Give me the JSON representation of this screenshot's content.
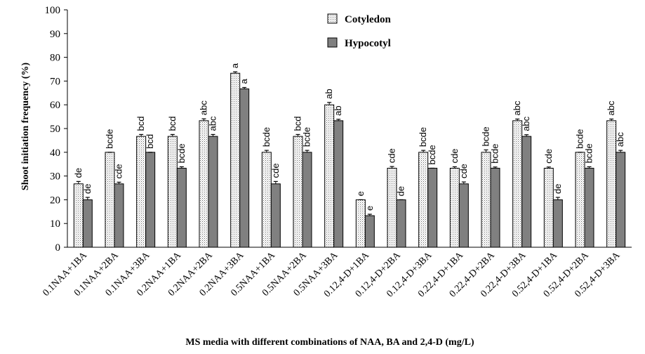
{
  "chart_data": {
    "type": "bar",
    "title": "",
    "xlabel": "MS media with different combinations of NAA, BA and 2,4-D (mg/L)",
    "ylabel": "Shoot initiation frequency (%)",
    "ylim": [
      0,
      100
    ],
    "yticks": [
      0,
      10,
      20,
      30,
      40,
      50,
      60,
      70,
      80,
      90,
      100
    ],
    "grid": false,
    "legend_position": "top-center",
    "categories": [
      "0.1NAA+1BA",
      "0.1NAA+2BA",
      "0.1NAA+3BA",
      "0.2NAA+1BA",
      "0.2NAA+2BA",
      "0.2NAA+3BA",
      "0.5NAA+1BA",
      "0.5NAA+2BA",
      "0.5NAA+3BA",
      "0.12,4-D+1BA",
      "0.12,4-D+2BA",
      "0.12,4-D+3BA",
      "0.22,4-D+1BA",
      "0.22,4-D+2BA",
      "0.22,4-D+3BA",
      "0.52,4-D+1BA",
      "0.52,4-D+2BA",
      "0.52,4-D+3BA"
    ],
    "series": [
      {
        "name": "Cotyledon",
        "color": "#f2f2f2",
        "pattern": "dotted",
        "values": [
          26.7,
          40,
          46.7,
          46.7,
          53.3,
          73.3,
          40,
          46.7,
          60,
          20,
          33.3,
          40,
          33.3,
          40,
          53.3,
          33.3,
          40,
          53.3
        ],
        "errors": [
          1,
          0,
          0.8,
          0.8,
          0.8,
          0.6,
          0.8,
          0.8,
          1,
          0,
          0.7,
          0.8,
          0.6,
          1,
          0.7,
          0.5,
          0,
          0.7
        ],
        "labels": [
          "de",
          "bcde",
          "bcd",
          "bcd",
          "abc",
          "a",
          "bcde",
          "bcd",
          "ab",
          "e",
          "cde",
          "bcde",
          "cde",
          "bcde",
          "abc",
          "cde",
          "bcde",
          "abc"
        ]
      },
      {
        "name": "Hypocotyl",
        "color": "#808080",
        "pattern": "solid",
        "values": [
          20,
          26.7,
          40,
          33.3,
          46.7,
          66.7,
          26.7,
          40,
          53.3,
          13.3,
          20,
          33.3,
          26.7,
          33.3,
          46.7,
          20,
          33.3,
          40
        ],
        "errors": [
          1,
          0.7,
          0,
          0.6,
          0.8,
          0.6,
          1,
          0.8,
          0.6,
          0.6,
          0,
          0,
          0.8,
          0.5,
          0.7,
          1,
          0.6,
          0.8
        ],
        "labels": [
          "de",
          "cde",
          "bcd",
          "bcde",
          "abc",
          "a",
          "cde",
          "bcde",
          "ab",
          "e",
          "de",
          "bcde",
          "cde",
          "bcde",
          "abc",
          "de",
          "bcde",
          "abc"
        ]
      }
    ]
  }
}
